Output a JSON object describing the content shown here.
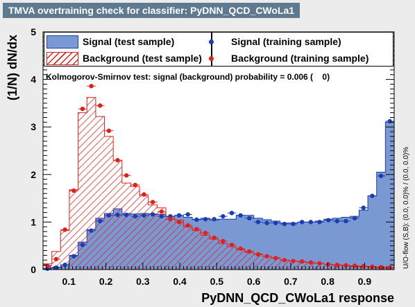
{
  "window_title": "TMVA overtraining check for classifier: PyDNN_QCD_CWoLa1",
  "ks_text": "Kolmogorov-Smirnov test: signal (background) probability = 0.006 (    0)",
  "side_label": "U/O-flow (S,B): (0.0, 0.0)% / (0.0, 0.0)%",
  "legend": {
    "signal_test": "Signal (test sample)",
    "signal_train": "Signal (training sample)",
    "background_test": "Background (test sample)",
    "background_train": "Background (training sample)"
  },
  "colors": {
    "signal": "#1a3db0",
    "signal_fill": "#7a99d2",
    "background": "#e0201b",
    "frame_title": "#5f7a90"
  },
  "chart_data": {
    "type": "bar",
    "xlabel": "PyDNN_QCD_CWoLa1 response",
    "ylabel": "(1/N) dN/dx",
    "xlim": [
      0.03,
      0.98
    ],
    "ylim": [
      0,
      5
    ],
    "x_ticks": [
      "0.1",
      "0.2",
      "0.3",
      "0.4",
      "0.5",
      "0.6",
      "0.7",
      "0.8",
      "0.9"
    ],
    "y_ticks": [
      "0",
      "1",
      "2",
      "3",
      "4",
      "5"
    ],
    "bin_edges": [
      0.03,
      0.05375,
      0.0775,
      0.10125,
      0.125,
      0.14875,
      0.1725,
      0.19625,
      0.22,
      0.24375,
      0.2675,
      0.29125,
      0.315,
      0.33875,
      0.3625,
      0.38625,
      0.41,
      0.43375,
      0.4575,
      0.48125,
      0.505,
      0.52875,
      0.5525,
      0.57625,
      0.6,
      0.62375,
      0.6475,
      0.67125,
      0.695,
      0.71875,
      0.7425,
      0.76625,
      0.79,
      0.81375,
      0.8375,
      0.86125,
      0.885,
      0.90875,
      0.9325,
      0.95625,
      0.98
    ],
    "series": [
      {
        "name": "Signal (test sample)",
        "kind": "hist-fill",
        "values": [
          0.03,
          0.05,
          0.1,
          0.3,
          0.58,
          0.84,
          1.08,
          1.18,
          1.28,
          1.18,
          1.17,
          1.18,
          1.17,
          1.16,
          1.12,
          1.14,
          1.1,
          1.06,
          1.08,
          1.04,
          1.06,
          1.06,
          1.14,
          1.14,
          1.08,
          1.05,
          1.02,
          0.98,
          0.98,
          1.0,
          1.0,
          1.02,
          1.06,
          1.08,
          1.1,
          1.12,
          1.25,
          1.55,
          2.05,
          3.1
        ]
      },
      {
        "name": "Signal (training sample)",
        "values": [
          0.02,
          0.04,
          0.1,
          0.28,
          0.52,
          0.82,
          1.02,
          1.14,
          1.15,
          1.15,
          1.12,
          1.14,
          1.16,
          1.12,
          1.12,
          1.14,
          1.16,
          1.05,
          1.06,
          1.06,
          1.12,
          1.19,
          1.14,
          1.08,
          1.0,
          0.98,
          0.98,
          0.96,
          0.96,
          1.0,
          1.0,
          1.0,
          1.04,
          1.02,
          1.02,
          1.08,
          1.3,
          1.55,
          1.97,
          3.12
        ]
      },
      {
        "name": "Background (test sample)",
        "kind": "hist-hatch",
        "values": [
          0.12,
          0.38,
          0.82,
          1.68,
          3.3,
          3.62,
          3.22,
          2.8,
          2.3,
          1.82,
          1.75,
          1.55,
          1.36,
          1.3,
          1.12,
          1.04,
          0.9,
          0.82,
          0.72,
          0.64,
          0.55,
          0.48,
          0.42,
          0.36,
          0.33,
          0.28,
          0.25,
          0.2,
          0.18,
          0.16,
          0.15,
          0.13,
          0.11,
          0.09,
          0.08,
          0.07,
          0.06,
          0.05,
          0.04,
          0.03
        ]
      },
      {
        "name": "Background (training sample)",
        "values": [
          0.08,
          0.22,
          0.84,
          1.66,
          3.38,
          3.86,
          3.45,
          2.92,
          2.3,
          1.98,
          1.78,
          1.58,
          1.42,
          1.22,
          1.06,
          1.0,
          0.93,
          0.85,
          0.77,
          0.67,
          0.6,
          0.52,
          0.44,
          0.38,
          0.32,
          0.28,
          0.24,
          0.2,
          0.18,
          0.17,
          0.15,
          0.13,
          0.11,
          0.1,
          0.09,
          0.08,
          0.07,
          0.06,
          0.05,
          0.04
        ]
      }
    ]
  }
}
